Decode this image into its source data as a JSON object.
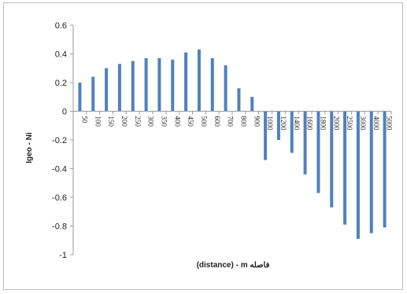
{
  "chart_data": {
    "type": "bar",
    "categories": [
      "50",
      "100",
      "150",
      "200",
      "250",
      "300",
      "350",
      "400",
      "450",
      "500",
      "600",
      "700",
      "800",
      "900",
      "1000",
      "1200",
      "1400",
      "1600",
      "1800",
      "2000",
      "2500",
      "3000",
      "4000",
      "5000"
    ],
    "values": [
      0.2,
      0.24,
      0.3,
      0.33,
      0.35,
      0.37,
      0.37,
      0.36,
      0.41,
      0.43,
      0.37,
      0.32,
      0.16,
      0.1,
      -0.34,
      -0.2,
      -0.29,
      -0.44,
      -0.57,
      -0.67,
      -0.79,
      -0.89,
      -0.85,
      -0.81
    ],
    "title": "",
    "xlabel": "(distance) - m فاصله",
    "ylabel": "Igeo - Ni",
    "ylim": [
      -1,
      0.6
    ],
    "yticks": [
      0.6,
      0.4,
      0.2,
      0,
      -0.2,
      -0.4,
      -0.6,
      -0.8,
      -1
    ],
    "ytick_labels": [
      "0.6",
      "0.4",
      "0.2",
      "0",
      "-0.2",
      "-0.4",
      "-0.6",
      "-0.8",
      "-1"
    ],
    "grid": false,
    "legend": "none",
    "bar_color": "#4f81bd",
    "axis_color": "#9a9a9a"
  }
}
